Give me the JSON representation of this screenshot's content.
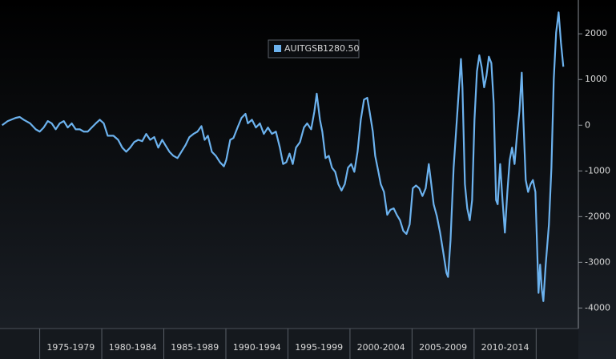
{
  "chart_data": {
    "type": "line",
    "legend_position": "top-center",
    "grid": false,
    "xlim": [
      1971.8,
      2018.4
    ],
    "xticks": [
      {
        "value": 1977.5,
        "label": "1975-1979"
      },
      {
        "value": 1982.5,
        "label": "1980-1984"
      },
      {
        "value": 1987.5,
        "label": "1985-1989"
      },
      {
        "value": 1992.5,
        "label": "1990-1994"
      },
      {
        "value": 1997.5,
        "label": "1995-1999"
      },
      {
        "value": 2002.5,
        "label": "2000-2004"
      },
      {
        "value": 2007.5,
        "label": "2005-2009"
      },
      {
        "value": 2012.5,
        "label": "2010-2014"
      }
    ],
    "ylim": [
      -4450,
      2600
    ],
    "yticks": [
      2000,
      1000,
      0,
      -1000,
      -2000,
      -3000,
      -4000
    ],
    "x": [
      1971.97,
      1972.42,
      1973.06,
      1973.39,
      1973.71,
      1974.23,
      1974.68,
      1975.0,
      1975.32,
      1975.65,
      1975.97,
      1976.29,
      1976.61,
      1976.94,
      1977.26,
      1977.58,
      1977.9,
      1978.23,
      1978.55,
      1978.87,
      1979.19,
      1979.52,
      1979.84,
      1980.16,
      1980.48,
      1980.94,
      1981.32,
      1981.65,
      1981.97,
      1982.29,
      1982.61,
      1982.94,
      1983.26,
      1983.58,
      1983.9,
      1984.23,
      1984.55,
      1984.87,
      1985.13,
      1985.45,
      1985.77,
      1986.1,
      1986.42,
      1986.74,
      1987.06,
      1987.39,
      1987.71,
      1988.03,
      1988.29,
      1988.55,
      1988.87,
      1989.19,
      1989.52,
      1989.84,
      1990.03,
      1990.35,
      1990.61,
      1990.94,
      1991.26,
      1991.58,
      1991.77,
      1992.1,
      1992.42,
      1992.74,
      1993.06,
      1993.39,
      1993.71,
      1994.03,
      1994.35,
      1994.61,
      1994.87,
      1995.13,
      1995.39,
      1995.65,
      1995.97,
      1996.29,
      1996.55,
      1996.87,
      1997.13,
      1997.32,
      1997.58,
      1997.77,
      1998.03,
      1998.29,
      1998.55,
      1998.81,
      1999.06,
      1999.32,
      1999.58,
      1999.84,
      2000.1,
      2000.35,
      2000.61,
      2000.87,
      2001.13,
      2001.39,
      2001.58,
      2001.84,
      2002.03,
      2002.29,
      2002.48,
      2002.74,
      2003.0,
      2003.26,
      2003.52,
      2003.77,
      2004.03,
      2004.29,
      2004.55,
      2004.81,
      2005.06,
      2005.32,
      2005.58,
      2005.84,
      2006.1,
      2006.35,
      2006.55,
      2006.74,
      2007.0,
      2007.26,
      2007.52,
      2007.77,
      2007.9,
      2008.1,
      2008.35,
      2008.61,
      2008.81,
      2008.94,
      2009.06,
      2009.26,
      2009.45,
      2009.65,
      2009.84,
      2010.03,
      2010.23,
      2010.42,
      2010.61,
      2010.81,
      2011.0,
      2011.19,
      2011.39,
      2011.58,
      2011.77,
      2011.9,
      2012.1,
      2012.29,
      2012.48,
      2012.68,
      2012.87,
      2013.06,
      2013.26,
      2013.45,
      2013.65,
      2013.84,
      2013.97,
      2014.16,
      2014.35,
      2014.55,
      2014.74,
      2014.94,
      2015.06,
      2015.19,
      2015.32,
      2015.45,
      2015.58,
      2015.77,
      2016.03,
      2016.23,
      2016.42,
      2016.61,
      2016.81,
      2017.0,
      2017.19
    ],
    "series": [
      {
        "name": "AUITGSB",
        "last_value_label": "1280.50",
        "color": "#6cb2ee",
        "values": [
          0,
          90,
          160,
          180,
          120,
          40,
          -90,
          -140,
          -50,
          90,
          40,
          -90,
          40,
          90,
          -50,
          40,
          -90,
          -90,
          -140,
          -140,
          -50,
          40,
          120,
          40,
          -230,
          -230,
          -320,
          -490,
          -580,
          -490,
          -370,
          -320,
          -350,
          -190,
          -320,
          -260,
          -490,
          -320,
          -440,
          -580,
          -670,
          -720,
          -580,
          -440,
          -260,
          -190,
          -140,
          -20,
          -320,
          -230,
          -580,
          -670,
          -810,
          -900,
          -760,
          -320,
          -280,
          -50,
          160,
          250,
          40,
          120,
          -50,
          40,
          -190,
          -50,
          -190,
          -140,
          -490,
          -850,
          -810,
          -620,
          -850,
          -490,
          -370,
          -50,
          40,
          -90,
          300,
          690,
          120,
          -140,
          -720,
          -670,
          -930,
          -1020,
          -1290,
          -1430,
          -1290,
          -930,
          -850,
          -1020,
          -580,
          120,
          560,
          600,
          300,
          -140,
          -670,
          -1020,
          -1290,
          -1460,
          -1960,
          -1850,
          -1820,
          -1960,
          -2080,
          -2310,
          -2380,
          -2170,
          -1380,
          -1320,
          -1380,
          -1550,
          -1380,
          -850,
          -1290,
          -1730,
          -1990,
          -2350,
          -2790,
          -3230,
          -3320,
          -2520,
          -930,
          120,
          920,
          1450,
          830,
          -1290,
          -1820,
          -2080,
          -1640,
          120,
          1180,
          1530,
          1270,
          830,
          1090,
          1500,
          1360,
          480,
          -1640,
          -1730,
          -850,
          -1640,
          -2350,
          -1460,
          -760,
          -490,
          -850,
          -230,
          300,
          1150,
          120,
          -1200,
          -1460,
          -1290,
          -1200,
          -1460,
          -2520,
          -3670,
          -3050,
          -3580,
          -3850,
          -3050,
          -2170,
          -930,
          1010,
          2030,
          2470,
          1800,
          1280.5
        ]
      }
    ]
  }
}
